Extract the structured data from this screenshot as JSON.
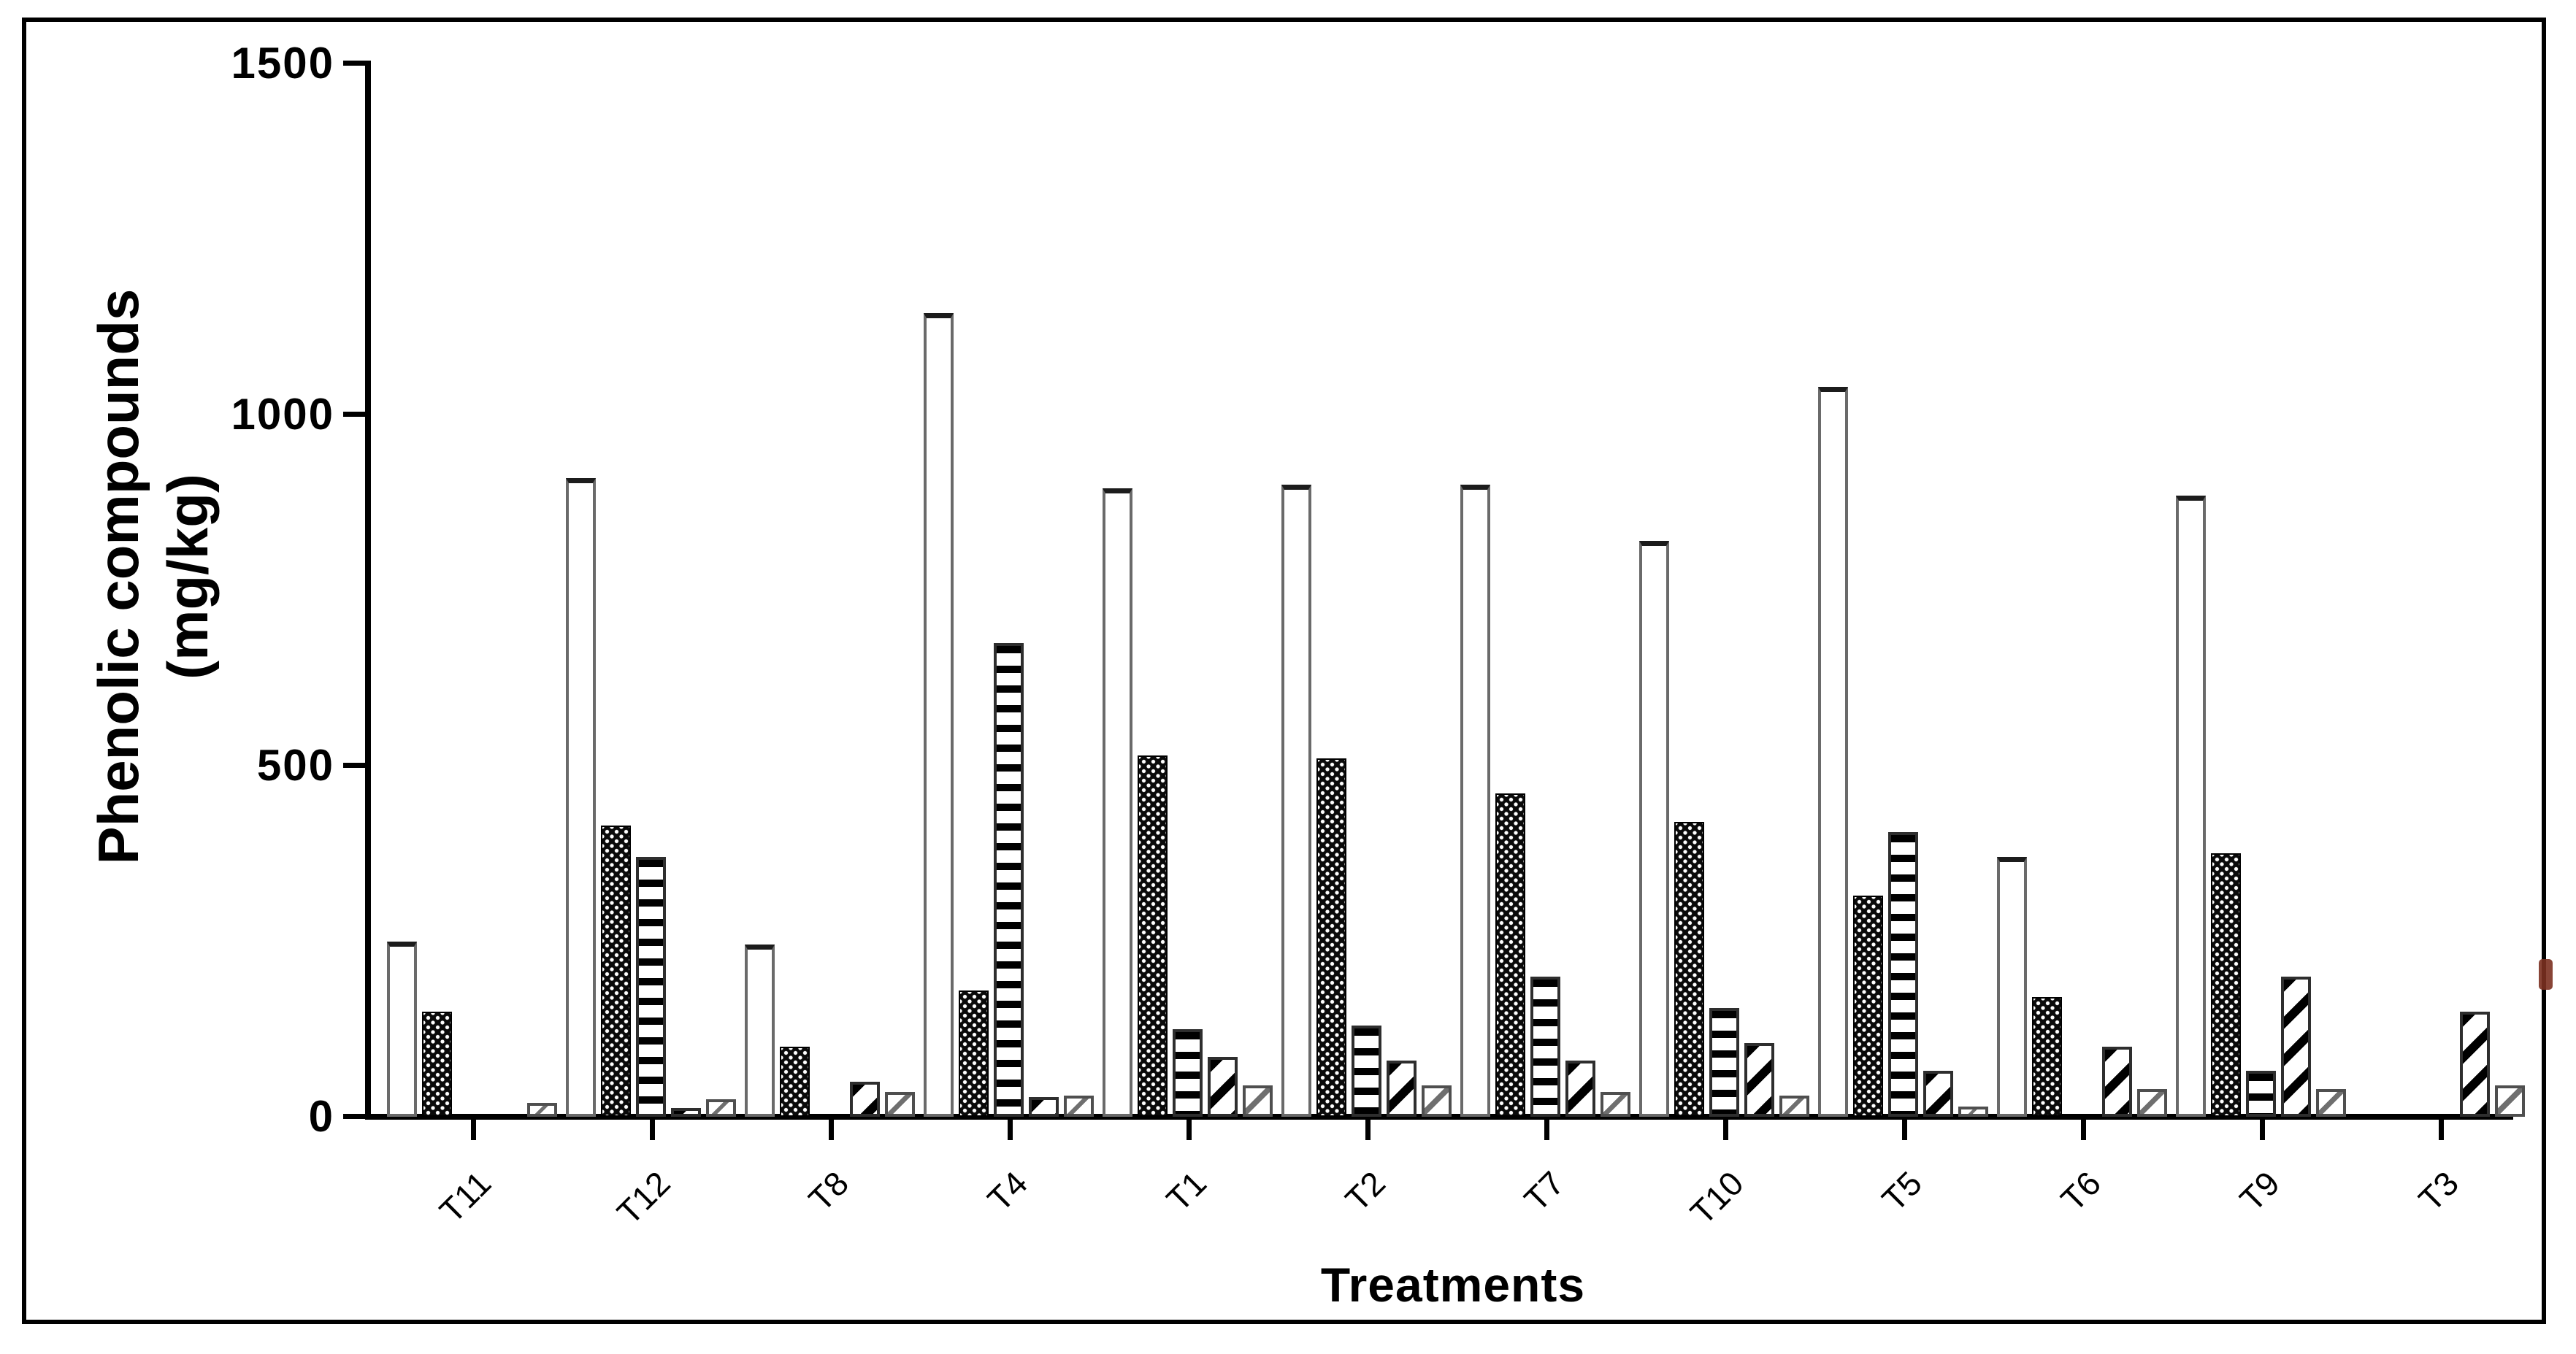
{
  "figure": {
    "background_color": "#ffffff",
    "frame_color": "#000000",
    "bar_fill_color": "#000000",
    "artifact_color": "#7b3020"
  },
  "chart_data": {
    "type": "bar",
    "title": "",
    "xlabel": "Treatments",
    "ylabel": "Phenolic compounds (mg/kg)",
    "ylabel_line1": "Phenolic compounds",
    "ylabel_line2": "(mg/kg)",
    "categories": [
      "T11",
      "T12",
      "T8",
      "T4",
      "T1",
      "T2",
      "T7",
      "T10",
      "T5",
      "T6",
      "T9",
      "T3"
    ],
    "yticks": [
      0,
      500,
      1000,
      1500
    ],
    "ylim": [
      0,
      1500
    ],
    "grid": false,
    "legend_position": "none",
    "unit": "mg/kg",
    "series": [
      {
        "name": "open-bar",
        "pattern": "open",
        "values": [
          250,
          910,
          245,
          1145,
          895,
          900,
          900,
          820,
          1040,
          370,
          885,
          0
        ]
      },
      {
        "name": "black-dotted-bar",
        "pattern": "black-dotted",
        "values": [
          150,
          415,
          100,
          180,
          515,
          510,
          460,
          420,
          315,
          170,
          375,
          0
        ]
      },
      {
        "name": "horizontal-striped-bar",
        "pattern": "horizontal-stripes",
        "values": [
          0,
          370,
          0,
          675,
          125,
          130,
          200,
          155,
          405,
          0,
          65,
          0
        ]
      },
      {
        "name": "diagonal-striped-bar",
        "pattern": "diagonal-stripes",
        "values": [
          0,
          12,
          50,
          28,
          85,
          80,
          80,
          105,
          65,
          100,
          200,
          150
        ]
      },
      {
        "name": "small-open-bar",
        "pattern": "light-diagonal",
        "values": [
          20,
          25,
          35,
          30,
          45,
          45,
          35,
          30,
          15,
          40,
          40,
          45
        ]
      }
    ]
  }
}
